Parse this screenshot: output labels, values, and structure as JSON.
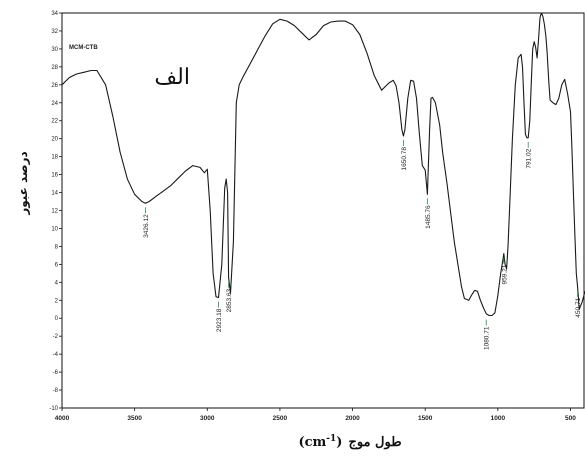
{
  "chart_data": {
    "type": "line",
    "panel_label": "الف",
    "sample_label": "MCM-CTB",
    "xlabel_text": "طول موج",
    "xlabel_unit": "(cm-1)",
    "ylabel": "درصد عبور",
    "xlim": [
      4000,
      400
    ],
    "ylim": [
      -10,
      34
    ],
    "x_ticks": [
      4000,
      3500,
      3000,
      2500,
      2000,
      1500,
      1000,
      500
    ],
    "x_tick_labels": [
      "4000",
      "3500",
      "3000",
      "2500",
      "2000",
      "1500",
      "1000",
      "500"
    ],
    "y_ticks": [
      -10,
      -8,
      -6,
      -4,
      -2,
      0,
      2,
      4,
      6,
      8,
      10,
      12,
      14,
      16,
      18,
      20,
      22,
      24,
      26,
      28,
      30,
      32,
      34
    ],
    "y_tick_labels": [
      "-10",
      "-8",
      "-6",
      "-4",
      "-2",
      "0",
      "2",
      "4",
      "6",
      "8",
      "10",
      "12",
      "14",
      "16",
      "18",
      "20",
      "22",
      "24",
      "26",
      "28",
      "30",
      "32",
      "34"
    ],
    "grid": false,
    "series": [
      {
        "x": [
          4000,
          3950,
          3900,
          3850,
          3800,
          3760,
          3700,
          3650,
          3600,
          3550,
          3500,
          3450,
          3426,
          3400,
          3350,
          3300,
          3250,
          3200,
          3150,
          3100,
          3050,
          3020,
          3000,
          2980,
          2960,
          2940,
          2923,
          2900,
          2880,
          2870,
          2860,
          2853,
          2840,
          2820,
          2800,
          2780,
          2750,
          2700,
          2650,
          2600,
          2550,
          2500,
          2450,
          2400,
          2350,
          2300,
          2250,
          2200,
          2150,
          2100,
          2050,
          2000,
          1950,
          1900,
          1850,
          1800,
          1750,
          1720,
          1700,
          1680,
          1660,
          1650,
          1640,
          1620,
          1600,
          1580,
          1560,
          1540,
          1520,
          1500,
          1485,
          1470,
          1460,
          1450,
          1430,
          1400,
          1380,
          1350,
          1300,
          1250,
          1230,
          1200,
          1180,
          1160,
          1140,
          1120,
          1100,
          1080,
          1060,
          1040,
          1020,
          1000,
          980,
          965,
          959,
          950,
          940,
          930,
          920,
          900,
          880,
          860,
          840,
          830,
          820,
          810,
          800,
          791,
          780,
          770,
          760,
          750,
          740,
          730,
          720,
          710,
          700,
          690,
          680,
          670,
          660,
          650,
          640,
          620,
          600,
          580,
          560,
          540,
          520,
          500,
          490,
          480,
          470,
          460,
          451,
          440,
          420,
          400
        ],
        "y": [
          26.0,
          26.8,
          27.2,
          27.4,
          27.6,
          27.6,
          26.0,
          22.5,
          18.5,
          15.5,
          13.8,
          13.0,
          12.8,
          13.0,
          13.6,
          14.2,
          14.8,
          15.6,
          16.4,
          17.0,
          16.8,
          16.2,
          16.6,
          12.0,
          5.0,
          2.4,
          2.3,
          6.0,
          14.5,
          15.5,
          14.0,
          4.5,
          2.8,
          8.5,
          24.0,
          26.0,
          27.0,
          28.5,
          30.0,
          31.5,
          32.8,
          33.3,
          33.1,
          32.6,
          31.8,
          31.0,
          31.6,
          32.6,
          33.0,
          33.1,
          33.1,
          32.7,
          31.6,
          29.5,
          27.0,
          25.4,
          26.2,
          26.5,
          25.9,
          24.0,
          21.0,
          20.3,
          21.0,
          24.5,
          26.5,
          26.4,
          24.5,
          20.5,
          17.0,
          16.5,
          13.8,
          21.0,
          24.5,
          24.6,
          24.0,
          21.5,
          18.5,
          15.0,
          8.5,
          3.5,
          2.2,
          2.0,
          2.6,
          3.1,
          3.0,
          2.0,
          1.2,
          0.5,
          0.3,
          0.3,
          0.6,
          2.5,
          5.0,
          6.5,
          7.2,
          6.0,
          5.5,
          8.0,
          12.0,
          20.0,
          26.0,
          29.0,
          29.4,
          28.0,
          24.0,
          20.5,
          20.1,
          20.1,
          22.0,
          26.0,
          30.0,
          30.8,
          30.2,
          29.0,
          31.0,
          33.5,
          34.0,
          33.6,
          32.8,
          31.5,
          29.5,
          26.5,
          24.3,
          24.0,
          23.8,
          24.5,
          26.0,
          26.6,
          25.0,
          23.0,
          19.0,
          14.0,
          9.5,
          5.0,
          3.5,
          1.0,
          1.8,
          3.0
        ]
      }
    ],
    "annotations": [
      {
        "label": "3426.12",
        "x": 3426,
        "y": 12.8
      },
      {
        "label": "2923.18",
        "x": 2923,
        "y": 2.3
      },
      {
        "label": "2853.63",
        "x": 2853,
        "y": 4.5
      },
      {
        "label": "1650.78",
        "x": 1650,
        "y": 20.3
      },
      {
        "label": "1485.76",
        "x": 1485,
        "y": 13.8
      },
      {
        "label": "1080.71",
        "x": 1080,
        "y": 0.3
      },
      {
        "label": "959.21",
        "x": 959,
        "y": 7.2
      },
      {
        "label": "791.02",
        "x": 791,
        "y": 20.1
      },
      {
        "label": "450.71",
        "x": 451,
        "y": 3.5
      }
    ]
  }
}
